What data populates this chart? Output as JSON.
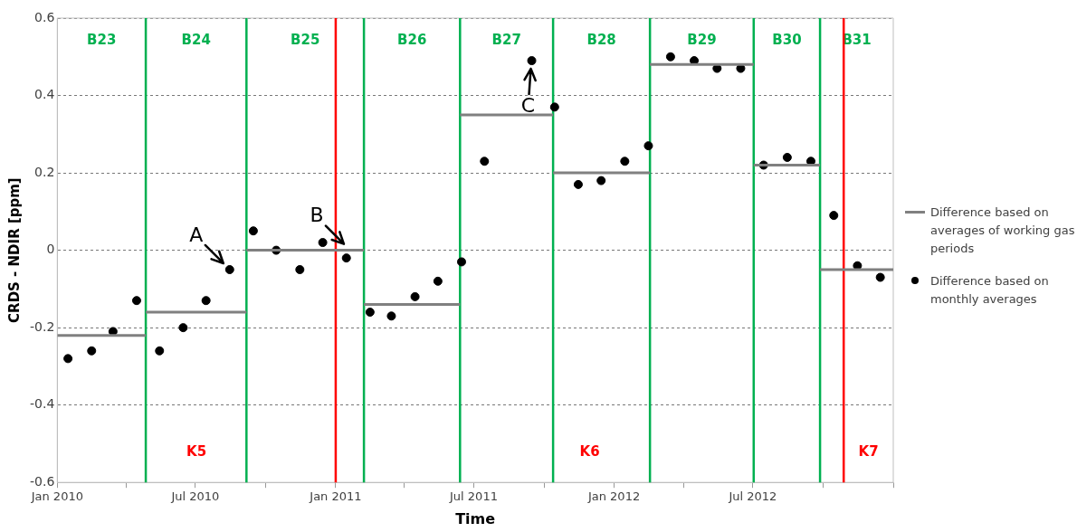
{
  "chart_data": {
    "type": "scatter",
    "xlabel": "Time",
    "ylabel": "CRDS - NDIR [ppm]",
    "xlim": [
      "2010-01-01",
      "2013-01-01"
    ],
    "xticks": [
      {
        "value": "2010-01-01",
        "label": "Jan 2010"
      },
      {
        "value": "2010-04-01",
        "label": null
      },
      {
        "value": "2010-07-01",
        "label": "Jul 2010"
      },
      {
        "value": "2010-10-01",
        "label": null
      },
      {
        "value": "2011-01-01",
        "label": "Jan 2011"
      },
      {
        "value": "2011-04-01",
        "label": null
      },
      {
        "value": "2011-07-01",
        "label": "Jul 2011"
      },
      {
        "value": "2011-10-01",
        "label": null
      },
      {
        "value": "2012-01-01",
        "label": "Jan 2012"
      },
      {
        "value": "2012-04-01",
        "label": null
      },
      {
        "value": "2012-07-01",
        "label": "Jul 2012"
      },
      {
        "value": "2012-10-01",
        "label": null
      },
      {
        "value": "2013-01-01",
        "label": null
      }
    ],
    "ylim": [
      -0.6,
      0.6
    ],
    "yticks": [
      -0.6,
      -0.4,
      -0.2,
      0,
      0.2,
      0.4,
      0.6
    ],
    "grid": "y",
    "legend": "right",
    "series": [
      {
        "type": "line",
        "name": "Difference based on averages of working gas periods",
        "color": "#808080",
        "marker": "none",
        "x": [
          "2010-01-01",
          "2010-04-27"
        ],
        "values": [
          -0.22,
          -0.22
        ]
      },
      {
        "type": "line",
        "color": "#808080",
        "marker": "none",
        "x": [
          "2010-04-27",
          "2010-09-06"
        ],
        "values": [
          -0.16,
          -0.16
        ]
      },
      {
        "type": "line",
        "color": "#808080",
        "marker": "none",
        "x": [
          "2010-09-06",
          "2011-02-07"
        ],
        "values": [
          0,
          0
        ]
      },
      {
        "type": "line",
        "color": "#808080",
        "marker": "none",
        "x": [
          "2011-02-07",
          "2011-06-13"
        ],
        "values": [
          -0.14,
          -0.14
        ]
      },
      {
        "type": "line",
        "color": "#808080",
        "marker": "none",
        "x": [
          "2011-06-13",
          "2011-10-13"
        ],
        "values": [
          0.35,
          0.35
        ]
      },
      {
        "type": "line",
        "color": "#808080",
        "marker": "none",
        "x": [
          "2011-10-13",
          "2012-02-17"
        ],
        "values": [
          0.2,
          0.2
        ]
      },
      {
        "type": "line",
        "color": "#808080",
        "marker": "none",
        "x": [
          "2012-02-17",
          "2012-07-02"
        ],
        "values": [
          0.48,
          0.48
        ]
      },
      {
        "type": "line",
        "color": "#808080",
        "marker": "none",
        "x": [
          "2012-07-02",
          "2012-09-27"
        ],
        "values": [
          0.22,
          0.22
        ]
      },
      {
        "type": "line",
        "color": "#808080",
        "marker": "none",
        "x": [
          "2012-09-27",
          "2013-01-01"
        ],
        "values": [
          -0.05,
          -0.05
        ]
      },
      {
        "name": "Difference based on monthly averages",
        "color": "#000000",
        "marker": "circle",
        "x": [
          "2010-01-15",
          "2010-02-15",
          "2010-03-15",
          "2010-04-15",
          "2010-05-15",
          "2010-06-15",
          "2010-07-15",
          "2010-08-15",
          "2010-09-15",
          "2010-10-15",
          "2010-11-15",
          "2010-12-15",
          "2011-01-15",
          "2011-02-15",
          "2011-03-15",
          "2011-04-15",
          "2011-05-15",
          "2011-06-15",
          "2011-07-15",
          "2011-09-15",
          "2011-10-15",
          "2011-11-15",
          "2011-12-15",
          "2012-01-15",
          "2012-02-15",
          "2012-03-15",
          "2012-04-15",
          "2012-05-15",
          "2012-06-15",
          "2012-07-15",
          "2012-08-15",
          "2012-09-15",
          "2012-10-15",
          "2012-11-15",
          "2012-12-15"
        ],
        "values": [
          -0.28,
          -0.26,
          -0.21,
          -0.13,
          -0.26,
          -0.2,
          -0.13,
          -0.05,
          0.05,
          0,
          -0.05,
          0.02,
          -0.02,
          -0.16,
          -0.17,
          -0.12,
          -0.08,
          -0.03,
          0.23,
          0.49,
          0.37,
          0.17,
          0.18,
          0.23,
          0.27,
          0.5,
          0.49,
          0.47,
          0.47,
          0.22,
          0.24,
          0.23,
          0.09,
          -0.04,
          -0.07
        ]
      }
    ],
    "ref_lines": [
      {
        "axis": "x",
        "value": "2010-04-27",
        "color": "#00b050"
      },
      {
        "axis": "x",
        "value": "2010-09-06",
        "color": "#00b050"
      },
      {
        "axis": "x",
        "value": "2011-01-01",
        "color": "#ff0000"
      },
      {
        "axis": "x",
        "value": "2011-02-07",
        "color": "#00b050"
      },
      {
        "axis": "x",
        "value": "2011-06-13",
        "color": "#00b050"
      },
      {
        "axis": "x",
        "value": "2011-10-13",
        "color": "#00b050"
      },
      {
        "axis": "x",
        "value": "2012-02-17",
        "color": "#00b050"
      },
      {
        "axis": "x",
        "value": "2012-07-02",
        "color": "#00b050"
      },
      {
        "axis": "x",
        "value": "2012-09-27",
        "color": "#00b050"
      },
      {
        "axis": "x",
        "value": "2012-10-28",
        "color": "#ff0000"
      }
    ],
    "annotations": [
      "B23",
      "B24",
      "B25",
      "B26",
      "B27",
      "B28",
      "B29",
      "B30",
      "B31",
      "K5",
      "K6",
      "K7",
      {
        "text": "A",
        "x": "2010-08-15",
        "y": -0.05
      },
      {
        "text": "B",
        "x": "2011-01-20",
        "y": 0
      },
      {
        "text": "C",
        "x": "2011-09-15",
        "y": 0.49
      }
    ]
  }
}
